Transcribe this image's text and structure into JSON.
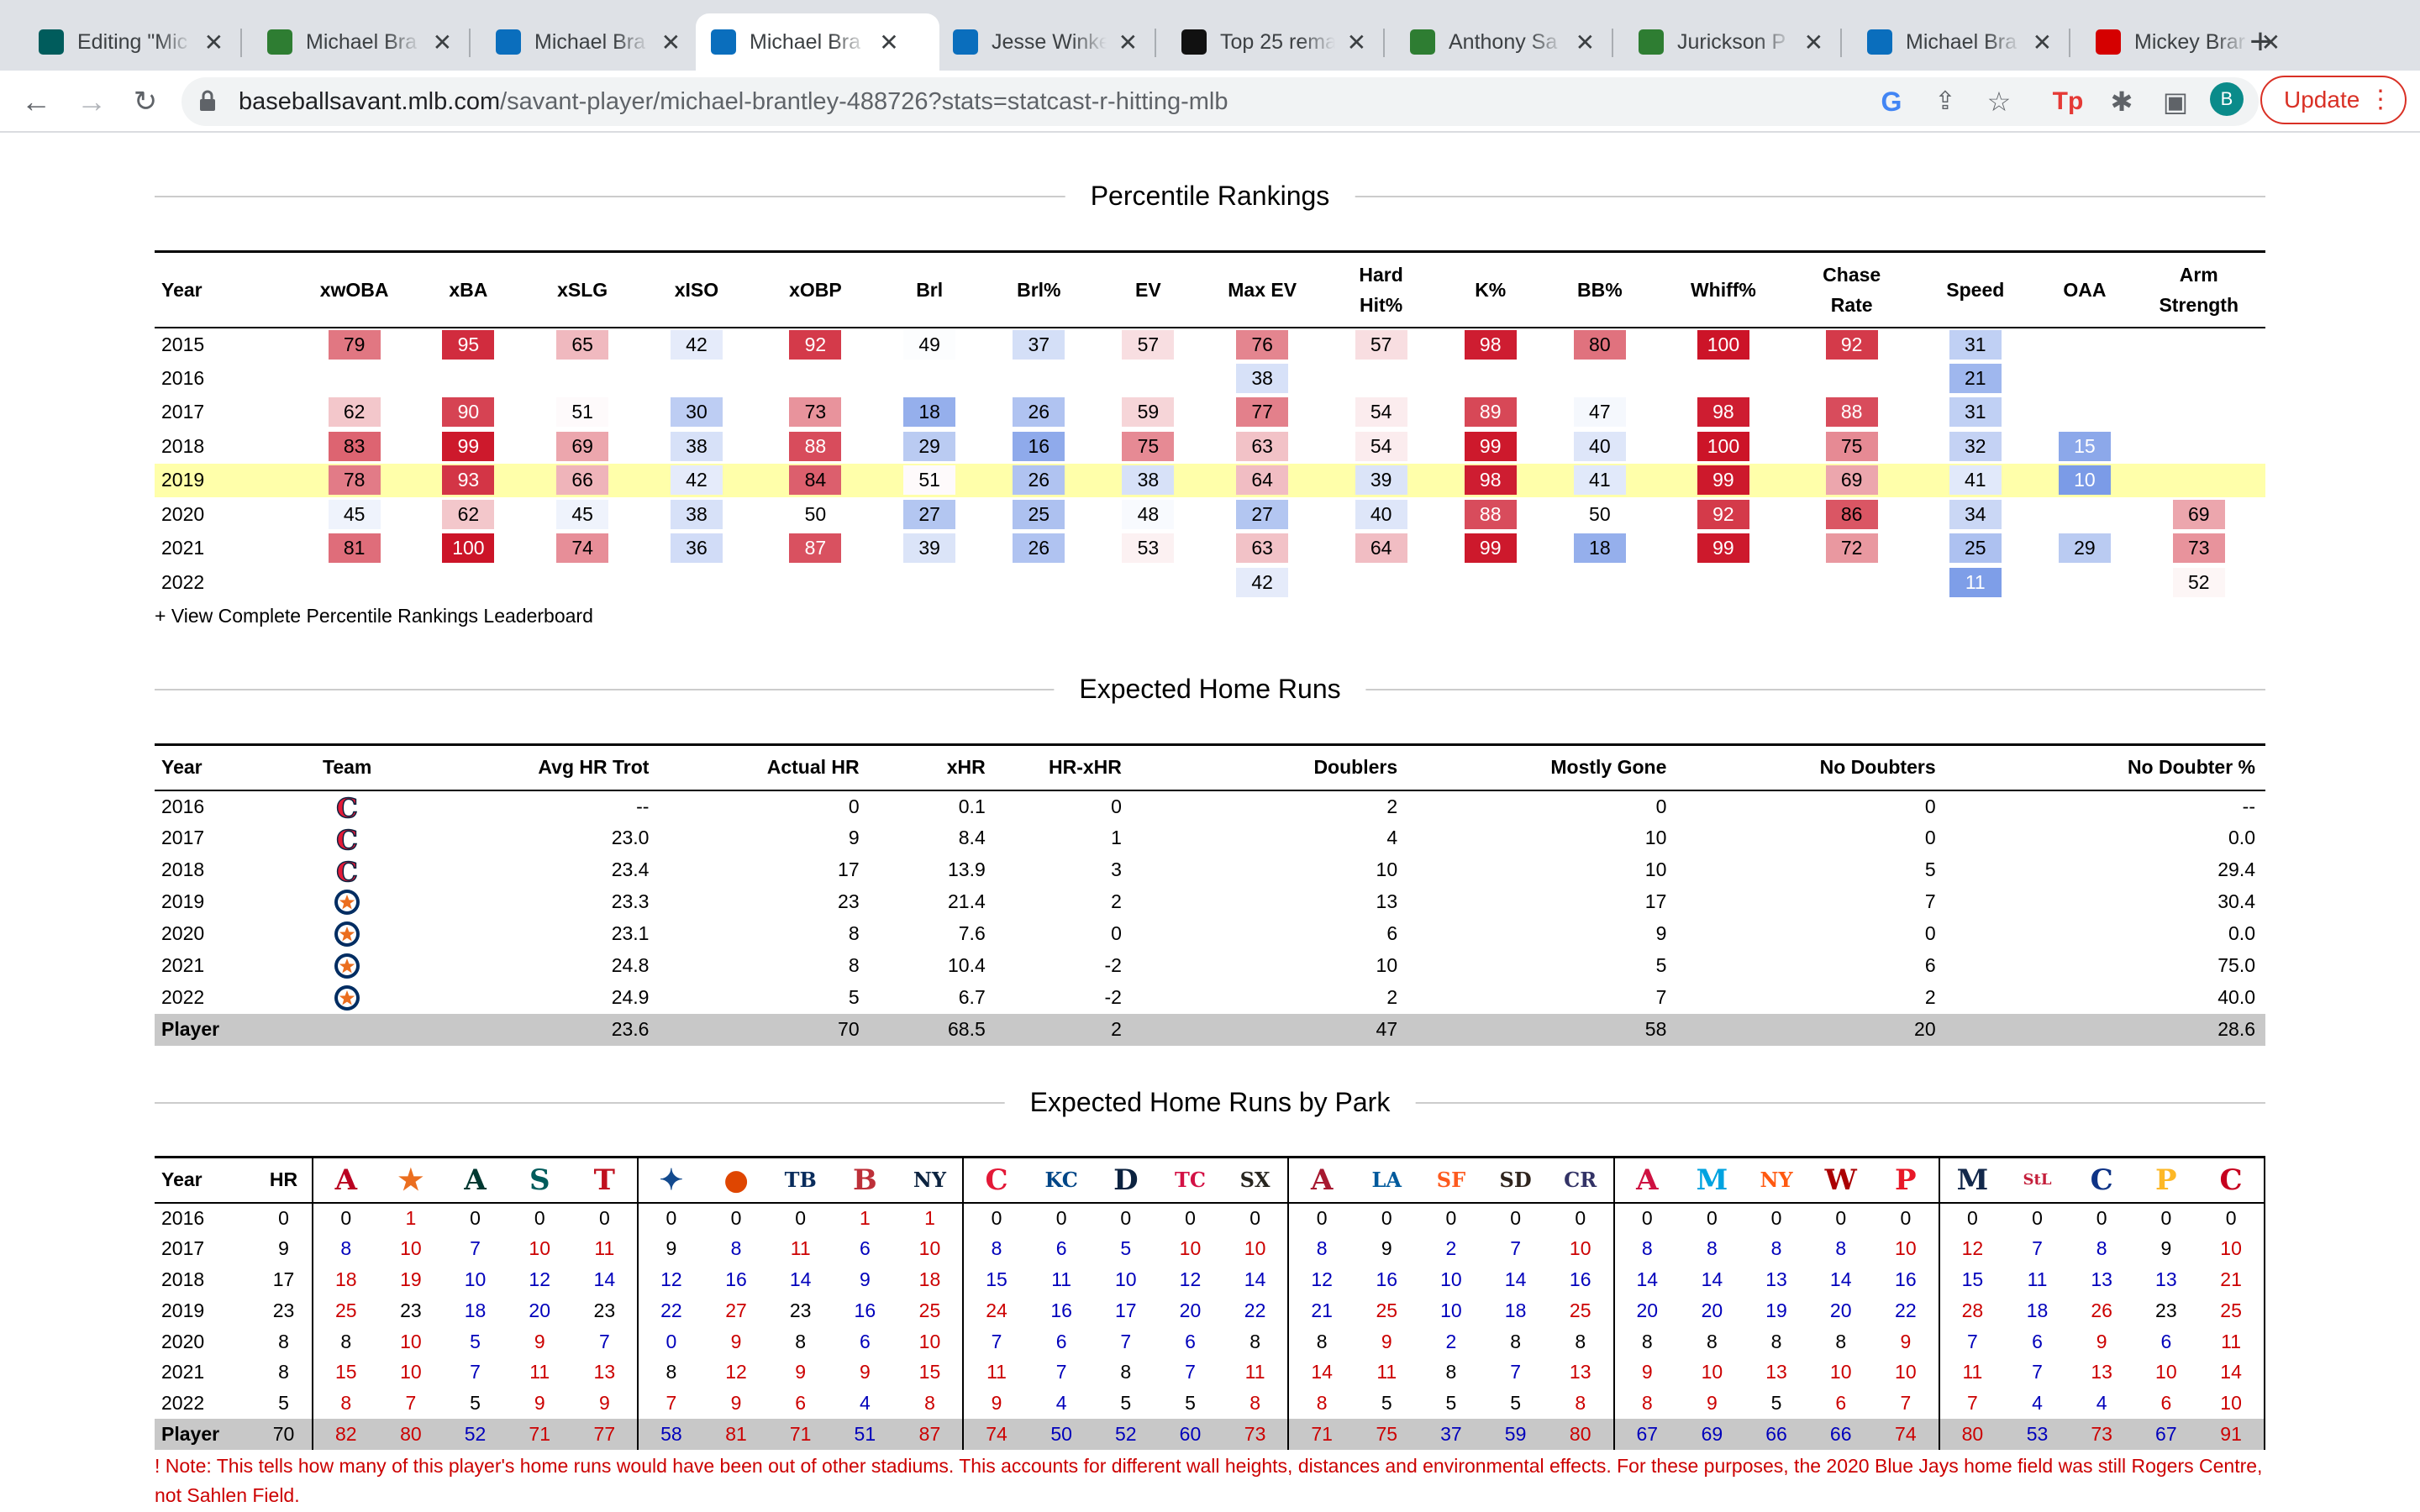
{
  "browser": {
    "tabs": [
      {
        "title": "Editing \"Mic",
        "favicon": "mariners-icon",
        "color": "#005c5c"
      },
      {
        "title": "Michael Bra",
        "favicon": "baseball-player-icon",
        "color": "#2e7d32"
      },
      {
        "title": "Michael Bra",
        "favicon": "mlb-icon",
        "color": "#0a6ebd"
      },
      {
        "title": "Michael Bra",
        "favicon": "mlb-icon",
        "color": "#0a6ebd"
      },
      {
        "title": "Jesse Winke",
        "favicon": "mlb-icon",
        "color": "#0a6ebd"
      },
      {
        "title": "Top 25 rema",
        "favicon": "athletic-icon",
        "color": "#111111"
      },
      {
        "title": "Anthony Sa",
        "favicon": "baseball-player-icon",
        "color": "#2e7d32"
      },
      {
        "title": "Jurickson P",
        "favicon": "baseball-player-icon",
        "color": "#2e7d32"
      },
      {
        "title": "Michael Bra",
        "favicon": "mlb-icon",
        "color": "#0a6ebd"
      },
      {
        "title": "Mickey Brar",
        "favicon": "red-flag-icon",
        "color": "#d50000"
      }
    ],
    "active_tab": 3,
    "url_host": "baseballsavant.mlb.com",
    "url_path": "/savant-player/michael-brantley-488726?stats=statcast-r-hitting-mlb",
    "profile_initial": "B",
    "update_label": "Update"
  },
  "percentile": {
    "title": "Percentile Rankings",
    "headers": [
      "Year",
      "xwOBA",
      "xBA",
      "xSLG",
      "xISO",
      "xOBP",
      "Brl",
      "Brl%",
      "EV",
      "Max EV",
      "Hard Hit%",
      "K%",
      "BB%",
      "Whiff%",
      "Chase Rate",
      "Speed",
      "OAA",
      "Arm Strength"
    ],
    "rows": [
      {
        "year": "2015",
        "values": [
          79,
          95,
          65,
          42,
          92,
          49,
          37,
          57,
          76,
          57,
          98,
          80,
          100,
          92,
          31,
          null,
          null
        ]
      },
      {
        "year": "2016",
        "values": [
          null,
          null,
          null,
          null,
          null,
          null,
          null,
          null,
          38,
          null,
          null,
          null,
          null,
          null,
          21,
          null,
          null
        ]
      },
      {
        "year": "2017",
        "values": [
          62,
          90,
          51,
          30,
          73,
          18,
          26,
          59,
          77,
          54,
          89,
          47,
          98,
          88,
          31,
          null,
          null
        ]
      },
      {
        "year": "2018",
        "values": [
          83,
          99,
          69,
          38,
          88,
          29,
          16,
          75,
          63,
          54,
          99,
          40,
          100,
          75,
          32,
          15,
          null
        ]
      },
      {
        "year": "2019",
        "values": [
          78,
          93,
          66,
          42,
          84,
          51,
          26,
          38,
          64,
          39,
          98,
          41,
          99,
          69,
          41,
          10,
          null
        ]
      },
      {
        "year": "2020",
        "values": [
          45,
          62,
          45,
          38,
          50,
          27,
          25,
          48,
          27,
          40,
          88,
          50,
          92,
          86,
          34,
          null,
          69
        ]
      },
      {
        "year": "2021",
        "values": [
          81,
          100,
          74,
          36,
          87,
          39,
          26,
          53,
          63,
          64,
          99,
          18,
          99,
          72,
          25,
          29,
          73
        ]
      },
      {
        "year": "2022",
        "values": [
          null,
          null,
          null,
          null,
          null,
          null,
          null,
          null,
          42,
          null,
          null,
          null,
          null,
          null,
          11,
          null,
          52
        ]
      }
    ],
    "highlight_year": "2019",
    "leaderboard_link": "+ View Complete Percentile Rankings Leaderboard"
  },
  "xhr": {
    "title": "Expected Home Runs",
    "headers": [
      "Year",
      "Team",
      "Avg HR Trot",
      "Actual HR",
      "xHR",
      "HR-xHR",
      "Doublers",
      "Mostly Gone",
      "No Doubters",
      "No Doubter %"
    ],
    "rows": [
      {
        "year": "2016",
        "team": "CLE",
        "trot": "--",
        "hr": "0",
        "xhr": "0.1",
        "diff": "0",
        "doublers": "2",
        "mostly": "0",
        "nodoubt": "0",
        "pct": "--"
      },
      {
        "year": "2017",
        "team": "CLE",
        "trot": "23.0",
        "hr": "9",
        "xhr": "8.4",
        "diff": "1",
        "doublers": "4",
        "mostly": "10",
        "nodoubt": "0",
        "pct": "0.0"
      },
      {
        "year": "2018",
        "team": "CLE",
        "trot": "23.4",
        "hr": "17",
        "xhr": "13.9",
        "diff": "3",
        "doublers": "10",
        "mostly": "10",
        "nodoubt": "5",
        "pct": "29.4"
      },
      {
        "year": "2019",
        "team": "HOU",
        "trot": "23.3",
        "hr": "23",
        "xhr": "21.4",
        "diff": "2",
        "doublers": "13",
        "mostly": "17",
        "nodoubt": "7",
        "pct": "30.4"
      },
      {
        "year": "2020",
        "team": "HOU",
        "trot": "23.1",
        "hr": "8",
        "xhr": "7.6",
        "diff": "0",
        "doublers": "6",
        "mostly": "9",
        "nodoubt": "0",
        "pct": "0.0"
      },
      {
        "year": "2021",
        "team": "HOU",
        "trot": "24.8",
        "hr": "8",
        "xhr": "10.4",
        "diff": "-2",
        "doublers": "10",
        "mostly": "5",
        "nodoubt": "6",
        "pct": "75.0"
      },
      {
        "year": "2022",
        "team": "HOU",
        "trot": "24.9",
        "hr": "5",
        "xhr": "6.7",
        "diff": "-2",
        "doublers": "2",
        "mostly": "7",
        "nodoubt": "2",
        "pct": "40.0"
      }
    ],
    "total": {
      "label": "Player",
      "trot": "23.6",
      "hr": "70",
      "xhr": "68.5",
      "diff": "2",
      "doublers": "47",
      "mostly": "58",
      "nodoubt": "20",
      "pct": "28.6"
    }
  },
  "park": {
    "title": "Expected Home Runs by Park",
    "headers": [
      "Year",
      "HR"
    ],
    "teams": [
      {
        "glyph": "A",
        "color": "#ba0021",
        "icon": "angels-logo"
      },
      {
        "glyph": "★",
        "color": "#eb6e1f",
        "icon": "astros-logo"
      },
      {
        "glyph": "A",
        "color": "#003831",
        "icon": "athletics-logo"
      },
      {
        "glyph": "S",
        "color": "#005c5c",
        "icon": "mariners-logo"
      },
      {
        "glyph": "T",
        "color": "#c0111f",
        "icon": "rangers-logo"
      },
      {
        "glyph": "✦",
        "color": "#134a8e",
        "icon": "blue-jays-logo"
      },
      {
        "glyph": "●",
        "color": "#df4601",
        "icon": "orioles-logo"
      },
      {
        "glyph": "TB",
        "color": "#092c5c",
        "icon": "rays-logo"
      },
      {
        "glyph": "B",
        "color": "#bd3039",
        "icon": "red-sox-logo"
      },
      {
        "glyph": "NY",
        "color": "#0c2340",
        "icon": "yankees-logo"
      },
      {
        "glyph": "C",
        "color": "#e31937",
        "icon": "guardians-logo"
      },
      {
        "glyph": "KC",
        "color": "#004687",
        "icon": "royals-logo"
      },
      {
        "glyph": "D",
        "color": "#0c2340",
        "icon": "tigers-logo"
      },
      {
        "glyph": "TC",
        "color": "#d31145",
        "icon": "twins-logo"
      },
      {
        "glyph": "SX",
        "color": "#27251f",
        "icon": "white-sox-logo"
      },
      {
        "glyph": "A",
        "color": "#a71930",
        "icon": "diamondbacks-logo"
      },
      {
        "glyph": "LA",
        "color": "#005a9c",
        "icon": "dodgers-logo"
      },
      {
        "glyph": "SF",
        "color": "#fd5a1e",
        "icon": "giants-logo"
      },
      {
        "glyph": "SD",
        "color": "#2f241d",
        "icon": "padres-logo"
      },
      {
        "glyph": "CR",
        "color": "#333366",
        "icon": "rockies-logo"
      },
      {
        "glyph": "A",
        "color": "#ce1141",
        "icon": "braves-logo"
      },
      {
        "glyph": "M",
        "color": "#00a3e0",
        "icon": "marlins-logo"
      },
      {
        "glyph": "NY",
        "color": "#ff5910",
        "icon": "mets-logo"
      },
      {
        "glyph": "W",
        "color": "#ab0003",
        "icon": "nationals-logo"
      },
      {
        "glyph": "P",
        "color": "#e81828",
        "icon": "phillies-logo"
      },
      {
        "glyph": "M",
        "color": "#12284b",
        "icon": "brewers-logo"
      },
      {
        "glyph": "StL",
        "color": "#c41e3a",
        "icon": "cardinals-logo"
      },
      {
        "glyph": "C",
        "color": "#0e3386",
        "icon": "cubs-logo"
      },
      {
        "glyph": "P",
        "color": "#fdb827",
        "icon": "pirates-logo"
      },
      {
        "glyph": "C",
        "color": "#c6011f",
        "icon": "reds-logo"
      }
    ],
    "rows": [
      {
        "year": "2016",
        "hr": 0,
        "values": [
          0,
          1,
          0,
          0,
          0,
          0,
          0,
          0,
          1,
          1,
          0,
          0,
          0,
          0,
          0,
          0,
          0,
          0,
          0,
          0,
          0,
          0,
          0,
          0,
          0,
          0,
          0,
          0,
          0,
          0
        ]
      },
      {
        "year": "2017",
        "hr": 9,
        "values": [
          8,
          10,
          7,
          10,
          11,
          9,
          8,
          11,
          6,
          10,
          8,
          6,
          5,
          10,
          10,
          8,
          9,
          2,
          7,
          10,
          8,
          8,
          8,
          8,
          10,
          12,
          7,
          8,
          9,
          10
        ]
      },
      {
        "year": "2018",
        "hr": 17,
        "values": [
          18,
          19,
          10,
          12,
          14,
          12,
          16,
          14,
          9,
          18,
          15,
          11,
          10,
          12,
          14,
          12,
          16,
          10,
          14,
          16,
          14,
          14,
          13,
          14,
          16,
          15,
          11,
          13,
          13,
          21
        ]
      },
      {
        "year": "2019",
        "hr": 23,
        "values": [
          25,
          23,
          18,
          20,
          23,
          22,
          27,
          23,
          16,
          25,
          24,
          16,
          17,
          20,
          22,
          21,
          25,
          10,
          18,
          25,
          20,
          20,
          19,
          20,
          22,
          28,
          18,
          26,
          23,
          25
        ]
      },
      {
        "year": "2020",
        "hr": 8,
        "values": [
          8,
          10,
          5,
          9,
          7,
          0,
          9,
          8,
          6,
          10,
          7,
          6,
          7,
          6,
          8,
          8,
          9,
          2,
          8,
          8,
          8,
          8,
          8,
          8,
          9,
          7,
          6,
          9,
          6,
          11
        ]
      },
      {
        "year": "2021",
        "hr": 8,
        "values": [
          15,
          10,
          7,
          11,
          13,
          8,
          12,
          9,
          9,
          15,
          11,
          7,
          8,
          7,
          11,
          14,
          11,
          8,
          7,
          13,
          9,
          10,
          13,
          10,
          10,
          11,
          7,
          13,
          10,
          14
        ]
      },
      {
        "year": "2022",
        "hr": 5,
        "values": [
          8,
          7,
          5,
          9,
          9,
          7,
          9,
          6,
          4,
          8,
          9,
          4,
          5,
          5,
          8,
          8,
          5,
          5,
          5,
          8,
          8,
          9,
          5,
          6,
          7,
          7,
          4,
          4,
          6,
          10
        ]
      }
    ],
    "total": {
      "label": "Player",
      "hr": 70,
      "values": [
        82,
        80,
        52,
        71,
        77,
        58,
        81,
        71,
        51,
        87,
        74,
        50,
        52,
        60,
        73,
        71,
        75,
        37,
        59,
        80,
        67,
        69,
        66,
        66,
        74,
        80,
        53,
        73,
        67,
        91
      ]
    },
    "note": "! Note: This tells how many of this player's home runs would have been out of other stadiums. This accounts for different wall heights, distances and environmental effects. For these purposes, the 2020 Blue Jays home field was still Rogers Centre, not Sahlen Field."
  },
  "colors": {
    "high": "#cc0000",
    "low": "#0000bb",
    "highlight": "#ffffaa",
    "total_row": "#c8c8c8"
  }
}
